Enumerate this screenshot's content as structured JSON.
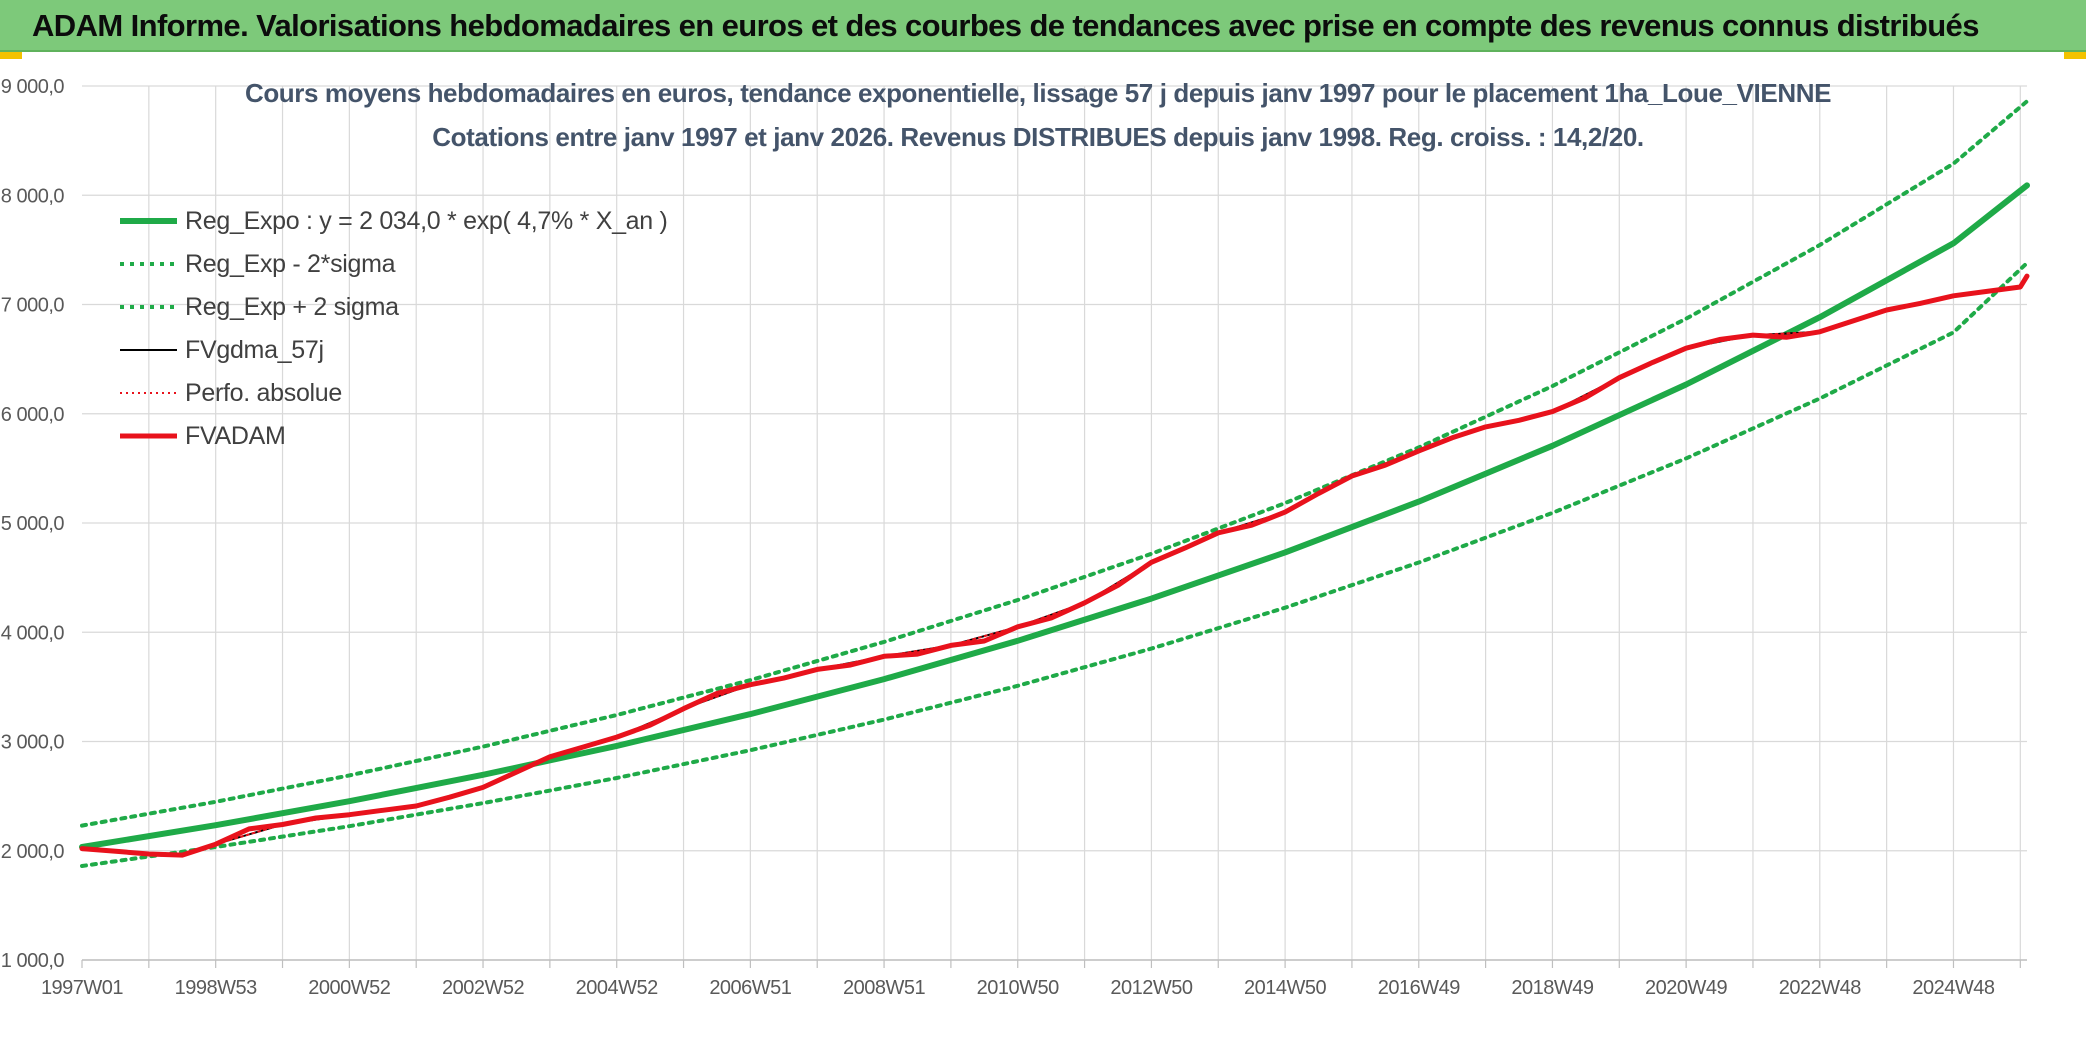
{
  "banner": {
    "title": "ADAM Informe. Valorisations hebdomadaires en euros et des courbes de tendances avec prise en compte des revenus connus distribués"
  },
  "colors": {
    "banner_bg": "#7dc97a",
    "trend_green": "#1faa48",
    "perf_red": "#e8121c",
    "fv_black": "#000000",
    "accent_yellow": "#f2c200"
  },
  "chart_data": {
    "type": "line",
    "title_line1": "Cours moyens hebdomadaires en euros, tendance exponentielle, lissage 57 j depuis janv 1997 pour le placement 1ha_Loue_VIENNE",
    "title_line2": "Cotations entre janv 1997 et janv 2026. Revenus DISTRIBUES depuis janv 1998. Reg. croiss. : 14,2/20.",
    "xlabel": "",
    "ylabel": "",
    "xlim": [
      1997.0,
      2026.1
    ],
    "ylim": [
      1000,
      9000
    ],
    "grid": true,
    "legend_position": "top-left",
    "y_ticks": [
      1000,
      2000,
      3000,
      4000,
      5000,
      6000,
      7000,
      8000,
      9000
    ],
    "y_tick_labels": [
      "1 000,0",
      "2 000,0",
      "3 000,0",
      "4 000,0",
      "5 000,0",
      "6 000,0",
      "7 000,0",
      "8 000,0",
      "9 000,0"
    ],
    "x_tick_labels": [
      "1997W01",
      "1998W53",
      "2000W52",
      "2002W52",
      "2004W52",
      "2006W51",
      "2008W51",
      "2010W50",
      "2012W50",
      "2014W50",
      "2016W49",
      "2018W49",
      "2020W49",
      "2022W48",
      "2024W48"
    ],
    "x_tick_years": [
      1997.0,
      1999.0,
      2001.0,
      2003.0,
      2005.0,
      2007.0,
      2009.0,
      2011.0,
      2013.0,
      2015.0,
      2017.0,
      2019.0,
      2021.0,
      2023.0,
      2025.0
    ],
    "series": [
      {
        "name": "Reg_Expo : y = 2 034,0 * exp( 4,7% *  X_an )",
        "color": "#1faa48",
        "style": "solid",
        "x": [
          1997.0,
          1999.0,
          2001.0,
          2003.0,
          2005.0,
          2007.0,
          2009.0,
          2011.0,
          2013.0,
          2015.0,
          2017.0,
          2019.0,
          2021.0,
          2023.0,
          2025.0,
          2026.1
        ],
        "values": [
          2034,
          2234,
          2454,
          2695,
          2960,
          3251,
          3571,
          3922,
          4308,
          4731,
          5196,
          5707,
          6268,
          6884,
          7560,
          8090
        ]
      },
      {
        "name": "Reg_Exp - 2*sigma",
        "color": "#1faa48",
        "style": "dotted",
        "x": [
          1997.0,
          1999.0,
          2001.0,
          2003.0,
          2005.0,
          2007.0,
          2009.0,
          2011.0,
          2013.0,
          2015.0,
          2017.0,
          2019.0,
          2021.0,
          2023.0,
          2025.0,
          2026.1
        ],
        "values": [
          1860,
          2034,
          2225,
          2436,
          2666,
          2920,
          3200,
          3510,
          3850,
          4225,
          4638,
          5092,
          5591,
          6140,
          6745,
          7380
        ]
      },
      {
        "name": "Reg_Exp + 2 sigma",
        "color": "#1faa48",
        "style": "dotted",
        "x": [
          1997.0,
          1999.0,
          2001.0,
          2003.0,
          2005.0,
          2007.0,
          2009.0,
          2011.0,
          2013.0,
          2015.0,
          2017.0,
          2019.0,
          2021.0,
          2023.0,
          2025.0,
          2026.1
        ],
        "values": [
          2230,
          2448,
          2690,
          2953,
          3243,
          3562,
          3912,
          4295,
          4718,
          5182,
          5692,
          6253,
          6870,
          7545,
          8290,
          8860
        ]
      },
      {
        "name": "FVgdma_57j",
        "color": "#000000",
        "style": "solid",
        "x": [
          1997.0,
          1998.0,
          1998.5,
          1999.0,
          2000.0,
          2001.0,
          2002.0,
          2003.0,
          2004.0,
          2005.0,
          2006.0,
          2007.0,
          2008.0,
          2009.0,
          2010.0,
          2011.0,
          2012.0,
          2013.0,
          2014.0,
          2015.0,
          2016.0,
          2017.0,
          2018.0,
          2019.0,
          2020.0,
          2021.0,
          2022.0,
          2023.0,
          2024.0,
          2025.0,
          2026.0
        ],
        "values": [
          2020,
          1975,
          1960,
          2060,
          2240,
          2330,
          2410,
          2580,
          2860,
          3040,
          3300,
          3520,
          3660,
          3780,
          3880,
          4050,
          4270,
          4640,
          4910,
          5100,
          5430,
          5660,
          5880,
          6020,
          6330,
          6600,
          6720,
          6750,
          6950,
          7080,
          7160
        ]
      },
      {
        "name": "Perfo. absolue",
        "color": "#e8121c",
        "style": "dotted",
        "x": [
          1997.0,
          1998.0,
          1998.5,
          1999.0,
          2000.0,
          2001.0,
          2002.0,
          2003.0,
          2004.0,
          2005.0,
          2006.0,
          2007.0,
          2008.0,
          2009.0,
          2010.0,
          2011.0,
          2012.0,
          2013.0,
          2014.0,
          2015.0,
          2016.0,
          2017.0,
          2018.0,
          2019.0,
          2020.0,
          2021.0,
          2022.0,
          2023.0,
          2024.0,
          2025.0,
          2026.0
        ],
        "values": [
          2020,
          1975,
          1960,
          2060,
          2240,
          2330,
          2410,
          2580,
          2860,
          3040,
          3300,
          3520,
          3660,
          3780,
          3880,
          4050,
          4270,
          4640,
          4910,
          5100,
          5430,
          5660,
          5880,
          6020,
          6330,
          6600,
          6720,
          6750,
          6950,
          7080,
          7160
        ]
      },
      {
        "name": "FVADAM",
        "color": "#e8121c",
        "style": "solid",
        "x": [
          1997.0,
          1997.6,
          1998.0,
          1998.5,
          1999.0,
          1999.5,
          2000.0,
          2000.5,
          2001.0,
          2001.5,
          2002.0,
          2002.5,
          2003.0,
          2003.5,
          2004.0,
          2004.5,
          2005.0,
          2005.5,
          2006.0,
          2006.5,
          2007.0,
          2007.5,
          2008.0,
          2008.5,
          2009.0,
          2009.5,
          2010.0,
          2010.5,
          2011.0,
          2011.5,
          2012.0,
          2012.5,
          2013.0,
          2013.5,
          2014.0,
          2014.5,
          2015.0,
          2015.5,
          2016.0,
          2016.5,
          2017.0,
          2017.5,
          2018.0,
          2018.5,
          2019.0,
          2019.5,
          2020.0,
          2020.5,
          2021.0,
          2021.5,
          2022.0,
          2022.5,
          2023.0,
          2023.5,
          2024.0,
          2024.5,
          2025.0,
          2025.5,
          2026.0,
          2026.1
        ],
        "values": [
          2020,
          1990,
          1970,
          1960,
          2060,
          2200,
          2240,
          2300,
          2330,
          2370,
          2410,
          2490,
          2580,
          2720,
          2860,
          2950,
          3040,
          3150,
          3300,
          3440,
          3520,
          3580,
          3660,
          3700,
          3780,
          3800,
          3880,
          3920,
          4050,
          4130,
          4270,
          4430,
          4640,
          4770,
          4910,
          4980,
          5100,
          5270,
          5430,
          5530,
          5660,
          5780,
          5880,
          5940,
          6020,
          6150,
          6330,
          6470,
          6600,
          6680,
          6720,
          6700,
          6750,
          6850,
          6950,
          7010,
          7080,
          7120,
          7160,
          7260
        ]
      }
    ]
  }
}
